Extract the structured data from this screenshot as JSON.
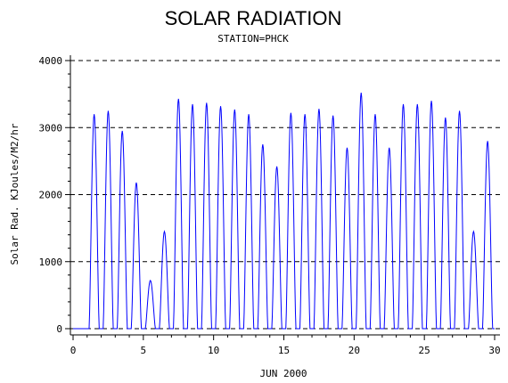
{
  "chart_data": {
    "type": "line",
    "title": "SOLAR RADIATION",
    "subtitle": "STATION=PHCK",
    "xlabel": "JUN 2000",
    "ylabel": "Solar Rad. KJoules/M2/hr",
    "xlim": [
      0,
      30
    ],
    "ylim": [
      0,
      4000
    ],
    "x_ticks": [
      0,
      5,
      10,
      15,
      20,
      25,
      30
    ],
    "y_ticks": [
      0,
      1000,
      2000,
      3000,
      4000
    ],
    "grid": "horizontal dashed",
    "line_color": "#0000ff",
    "series": [
      {
        "daily_peaks": [
          {
            "day": 1.5,
            "peak": 3200
          },
          {
            "day": 2.5,
            "peak": 3250
          },
          {
            "day": 3.5,
            "peak": 2950
          },
          {
            "day": 4.5,
            "peak": 2180
          },
          {
            "day": 5.5,
            "peak": 720
          },
          {
            "day": 6.5,
            "peak": 1450
          },
          {
            "day": 7.5,
            "peak": 3430
          },
          {
            "day": 8.5,
            "peak": 3350
          },
          {
            "day": 9.5,
            "peak": 3370
          },
          {
            "day": 10.5,
            "peak": 3320
          },
          {
            "day": 11.5,
            "peak": 3270
          },
          {
            "day": 12.5,
            "peak": 3200
          },
          {
            "day": 13.5,
            "peak": 2750
          },
          {
            "day": 14.5,
            "peak": 2420
          },
          {
            "day": 15.5,
            "peak": 3220
          },
          {
            "day": 16.5,
            "peak": 3200
          },
          {
            "day": 17.5,
            "peak": 3280
          },
          {
            "day": 18.5,
            "peak": 3180
          },
          {
            "day": 19.5,
            "peak": 2700
          },
          {
            "day": 20.5,
            "peak": 3520
          },
          {
            "day": 21.5,
            "peak": 3200
          },
          {
            "day": 22.5,
            "peak": 2700
          },
          {
            "day": 23.5,
            "peak": 3350
          },
          {
            "day": 24.5,
            "peak": 3350
          },
          {
            "day": 25.5,
            "peak": 3400
          },
          {
            "day": 26.5,
            "peak": 3150
          },
          {
            "day": 27.5,
            "peak": 3250
          },
          {
            "day": 28.5,
            "peak": 1450
          },
          {
            "day": 29.5,
            "peak": 2800
          }
        ]
      }
    ]
  }
}
